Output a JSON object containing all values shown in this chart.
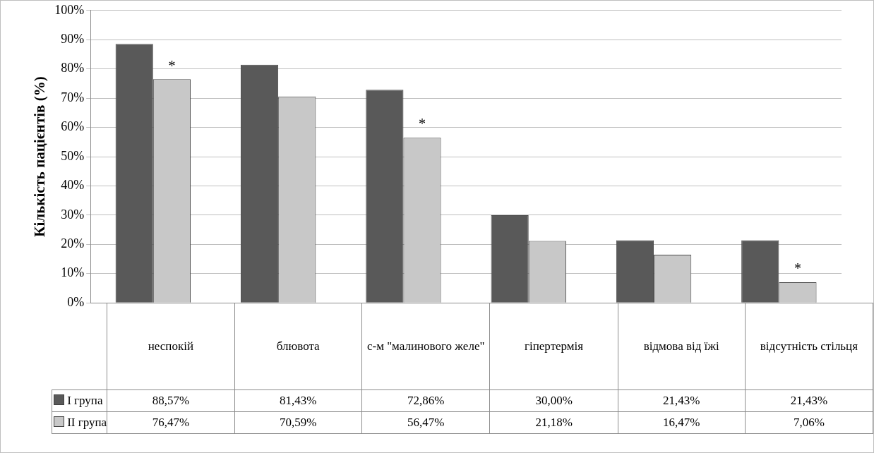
{
  "chart_data": {
    "type": "bar",
    "ylabel": "Кількість пацієнтів (%)",
    "categories": [
      "неспокій",
      "блювота",
      "с-м \"малинового желе\"",
      "гіпертермія",
      "відмова від їжі",
      "відсутність стільця"
    ],
    "series": [
      {
        "name": "I група",
        "color": "#595959",
        "values": [
          88.57,
          81.43,
          72.86,
          30.0,
          21.43,
          21.43
        ],
        "value_labels": [
          "88,57%",
          "81,43%",
          "72,86%",
          "30,00%",
          "21,43%",
          "21,43%"
        ]
      },
      {
        "name": "II група",
        "color": "#c8c8c8",
        "values": [
          76.47,
          70.59,
          56.47,
          21.18,
          16.47,
          7.06
        ],
        "value_labels": [
          "76,47%",
          "70,59%",
          "56,47%",
          "21,18%",
          "16,47%",
          "7,06%"
        ]
      }
    ],
    "ylim": [
      0,
      100
    ],
    "yticks": [
      {
        "value": 0,
        "label": "0%"
      },
      {
        "value": 10,
        "label": "10%"
      },
      {
        "value": 20,
        "label": "20%"
      },
      {
        "value": 30,
        "label": "30%"
      },
      {
        "value": 40,
        "label": "40%"
      },
      {
        "value": 50,
        "label": "50%"
      },
      {
        "value": 60,
        "label": "60%"
      },
      {
        "value": 70,
        "label": "70%"
      },
      {
        "value": 80,
        "label": "80%"
      },
      {
        "value": 90,
        "label": "90%"
      },
      {
        "value": 100,
        "label": "100%"
      }
    ],
    "grid": "y",
    "legend": "bottom",
    "annotations": [
      {
        "text": "*",
        "x": "неспокій",
        "y": 76.47
      },
      {
        "text": "*",
        "x": "с-м \"малинового желе\"",
        "y": 56.47
      },
      {
        "text": "*",
        "x": "відсутність стільця",
        "y": 7.06
      }
    ]
  }
}
